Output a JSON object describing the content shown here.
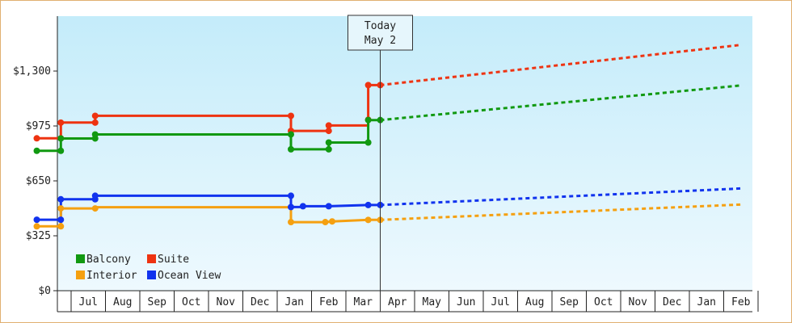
{
  "chart_data": {
    "type": "line",
    "today_marker": {
      "line1": "Today",
      "line2": "May 2"
    },
    "x_ticks": [
      "Jul",
      "Aug",
      "Sep",
      "Oct",
      "Nov",
      "Dec",
      "Jan",
      "Feb",
      "Mar",
      "Apr",
      "May",
      "Jun",
      "Jul",
      "Aug",
      "Sep",
      "Oct",
      "Nov",
      "Dec",
      "Jan",
      "Feb"
    ],
    "y_ticks": [
      "$0",
      "$325",
      "$650",
      "$975",
      "$1,300"
    ],
    "ylim": [
      0,
      1625
    ],
    "colors": {
      "Balcony": "#119911",
      "Suite": "#ee3311",
      "Interior": "#f5a010",
      "Ocean View": "#1133ee"
    },
    "series": [
      {
        "name": "Suite",
        "color": "#ee3311",
        "history": [
          [
            -1.0,
            902
          ],
          [
            -0.3,
            902
          ],
          [
            -0.3,
            995
          ],
          [
            0.7,
            995
          ],
          [
            0.7,
            1035
          ],
          [
            6.4,
            1035
          ],
          [
            6.4,
            946
          ],
          [
            7.5,
            946
          ],
          [
            7.5,
            978
          ],
          [
            8.65,
            978
          ],
          [
            8.65,
            1012
          ],
          [
            8.65,
            1217
          ],
          [
            9.0,
            1217
          ]
        ],
        "points": [
          [
            -1.0,
            902
          ],
          [
            -0.3,
            902
          ],
          [
            -0.3,
            995
          ],
          [
            0.7,
            995
          ],
          [
            0.7,
            1035
          ],
          [
            6.4,
            1035
          ],
          [
            6.4,
            946
          ],
          [
            7.5,
            946
          ],
          [
            7.5,
            978
          ],
          [
            8.65,
            1012
          ],
          [
            8.65,
            1217
          ],
          [
            9.0,
            1217
          ]
        ],
        "projection": [
          [
            9.0,
            1217
          ],
          [
            19.5,
            1455
          ]
        ]
      },
      {
        "name": "Balcony",
        "color": "#119911",
        "history": [
          [
            -1.0,
            828
          ],
          [
            -0.3,
            828
          ],
          [
            -0.3,
            901
          ],
          [
            0.7,
            901
          ],
          [
            0.7,
            925
          ],
          [
            6.4,
            925
          ],
          [
            6.4,
            837
          ],
          [
            7.5,
            837
          ],
          [
            7.5,
            877
          ],
          [
            8.65,
            877
          ],
          [
            8.65,
            1010
          ],
          [
            9.0,
            1010
          ]
        ],
        "points": [
          [
            -1.0,
            828
          ],
          [
            -0.3,
            828
          ],
          [
            -0.3,
            901
          ],
          [
            0.7,
            901
          ],
          [
            0.7,
            925
          ],
          [
            6.4,
            925
          ],
          [
            6.4,
            837
          ],
          [
            7.5,
            837
          ],
          [
            7.5,
            877
          ],
          [
            8.65,
            877
          ],
          [
            8.65,
            1010
          ],
          [
            9.0,
            1010
          ]
        ],
        "projection": [
          [
            9.0,
            1010
          ],
          [
            19.5,
            1215
          ]
        ]
      },
      {
        "name": "Ocean View",
        "color": "#1133ee",
        "history": [
          [
            -1.0,
            420
          ],
          [
            -0.3,
            420
          ],
          [
            -0.3,
            541
          ],
          [
            0.7,
            541
          ],
          [
            0.7,
            562
          ],
          [
            6.4,
            562
          ],
          [
            6.4,
            495
          ],
          [
            6.75,
            495
          ],
          [
            6.75,
            500
          ],
          [
            7.5,
            500
          ],
          [
            8.65,
            507
          ],
          [
            9.0,
            507
          ]
        ],
        "points": [
          [
            -1.0,
            420
          ],
          [
            -0.3,
            420
          ],
          [
            -0.3,
            541
          ],
          [
            0.7,
            541
          ],
          [
            0.7,
            562
          ],
          [
            6.4,
            562
          ],
          [
            6.4,
            495
          ],
          [
            6.75,
            500
          ],
          [
            7.5,
            500
          ],
          [
            8.65,
            507
          ],
          [
            9.0,
            507
          ]
        ],
        "projection": [
          [
            9.0,
            507
          ],
          [
            19.5,
            605
          ]
        ]
      },
      {
        "name": "Interior",
        "color": "#f5a010",
        "history": [
          [
            -1.0,
            381
          ],
          [
            -0.3,
            381
          ],
          [
            -0.3,
            487
          ],
          [
            0.7,
            487
          ],
          [
            0.7,
            494
          ],
          [
            6.4,
            494
          ],
          [
            6.4,
            406
          ],
          [
            7.4,
            406
          ],
          [
            7.6,
            410
          ],
          [
            8.65,
            419
          ],
          [
            9.0,
            419
          ]
        ],
        "points": [
          [
            -1.0,
            381
          ],
          [
            -0.3,
            381
          ],
          [
            -0.3,
            487
          ],
          [
            0.7,
            487
          ],
          [
            6.4,
            406
          ],
          [
            7.4,
            406
          ],
          [
            7.6,
            410
          ],
          [
            8.65,
            419
          ],
          [
            9.0,
            419
          ]
        ],
        "projection": [
          [
            9.0,
            419
          ],
          [
            19.5,
            510
          ]
        ]
      }
    ],
    "legend": [
      {
        "label": "Balcony",
        "color": "#119911"
      },
      {
        "label": "Suite",
        "color": "#ee3311"
      },
      {
        "label": "Interior",
        "color": "#f5a010"
      },
      {
        "label": "Ocean View",
        "color": "#1133ee"
      }
    ],
    "legend_position": "bottom-left",
    "grid": false
  }
}
